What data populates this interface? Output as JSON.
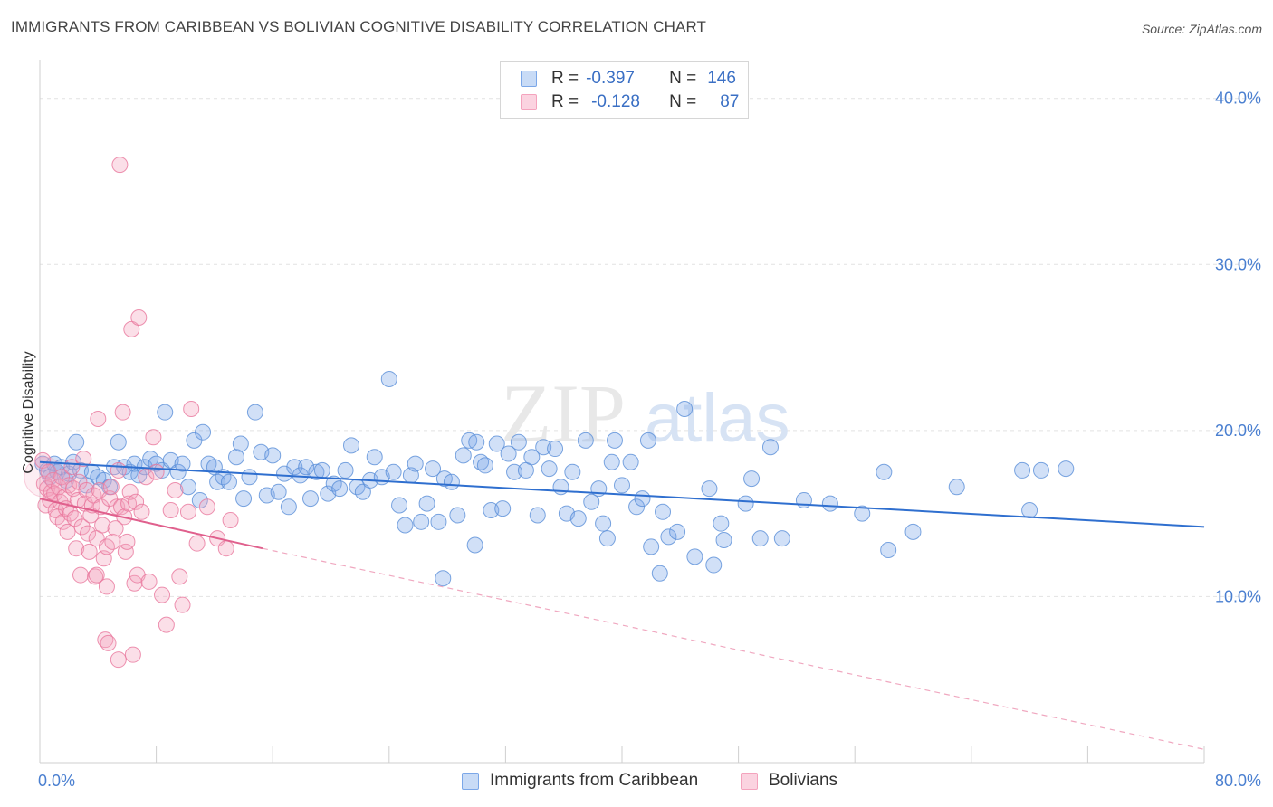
{
  "title": "IMMIGRANTS FROM CARIBBEAN VS BOLIVIAN COGNITIVE DISABILITY CORRELATION CHART",
  "source": "Source: ZipAtlas.com",
  "watermark": {
    "zip": "ZIP",
    "atlas": "atlas"
  },
  "legend_top": {
    "rows": [
      {
        "r_label": "R =",
        "r_value": "-0.397",
        "n_label": "N =",
        "n_value": "146",
        "color": "#7ba7e8"
      },
      {
        "r_label": "R =",
        "r_value": "-0.128",
        "n_label": "N =",
        "n_value": "87",
        "color": "#f4a3bd"
      }
    ]
  },
  "chart_data": {
    "type": "scatter",
    "title": "IMMIGRANTS FROM CARIBBEAN VS BOLIVIAN COGNITIVE DISABILITY CORRELATION CHART",
    "xlabel": "",
    "ylabel": "Cognitive Disability",
    "xlim": [
      0,
      80
    ],
    "ylim": [
      0,
      42
    ],
    "x_tick_labels": [
      "0.0%",
      "80.0%"
    ],
    "y_ticks": [
      10,
      20,
      30,
      40
    ],
    "y_tick_labels": [
      "10.0%",
      "20.0%",
      "30.0%",
      "40.0%"
    ],
    "grid": true,
    "legend_position": "bottom",
    "series": [
      {
        "name": "Immigrants from Caribbean",
        "color": "#7ba7e8",
        "stroke": "#5a8fd8",
        "trend": {
          "x": [
            0,
            80
          ],
          "y": [
            18.1,
            14.2
          ],
          "color": "#2f6fcf"
        },
        "points": [
          [
            0.2,
            18.0
          ],
          [
            0.5,
            17.6
          ],
          [
            0.7,
            17.2
          ],
          [
            1.0,
            18.0
          ],
          [
            1.2,
            17.5
          ],
          [
            1.5,
            17.8
          ],
          [
            1.8,
            17.0
          ],
          [
            2.0,
            17.4
          ],
          [
            2.3,
            18.1
          ],
          [
            2.5,
            19.3
          ],
          [
            2.8,
            17.6
          ],
          [
            3.2,
            16.7
          ],
          [
            3.6,
            17.5
          ],
          [
            4.0,
            17.2
          ],
          [
            4.4,
            17.0
          ],
          [
            4.8,
            16.6
          ],
          [
            5.1,
            17.8
          ],
          [
            5.4,
            19.3
          ],
          [
            5.8,
            17.8
          ],
          [
            6.2,
            17.5
          ],
          [
            6.5,
            18.0
          ],
          [
            6.8,
            17.3
          ],
          [
            7.2,
            17.8
          ],
          [
            7.6,
            18.3
          ],
          [
            8.0,
            18.0
          ],
          [
            8.4,
            17.6
          ],
          [
            8.6,
            21.1
          ],
          [
            9.0,
            18.2
          ],
          [
            9.5,
            17.5
          ],
          [
            9.8,
            18.0
          ],
          [
            10.2,
            16.6
          ],
          [
            10.6,
            19.4
          ],
          [
            11.0,
            15.8
          ],
          [
            11.2,
            19.9
          ],
          [
            11.6,
            18.0
          ],
          [
            12.0,
            17.8
          ],
          [
            12.2,
            16.9
          ],
          [
            12.6,
            17.2
          ],
          [
            13.0,
            16.9
          ],
          [
            13.5,
            18.4
          ],
          [
            13.8,
            19.2
          ],
          [
            14.0,
            15.9
          ],
          [
            14.4,
            17.2
          ],
          [
            14.8,
            21.1
          ],
          [
            15.2,
            18.7
          ],
          [
            15.6,
            16.1
          ],
          [
            16.0,
            18.5
          ],
          [
            16.4,
            16.3
          ],
          [
            16.8,
            17.4
          ],
          [
            17.1,
            15.4
          ],
          [
            17.5,
            17.8
          ],
          [
            17.9,
            17.3
          ],
          [
            18.3,
            17.8
          ],
          [
            18.6,
            15.9
          ],
          [
            19.0,
            17.5
          ],
          [
            19.4,
            17.6
          ],
          [
            19.8,
            16.2
          ],
          [
            20.2,
            16.8
          ],
          [
            20.6,
            16.5
          ],
          [
            21.0,
            17.6
          ],
          [
            21.4,
            19.1
          ],
          [
            21.8,
            16.6
          ],
          [
            22.2,
            16.3
          ],
          [
            22.7,
            17.0
          ],
          [
            23.0,
            18.4
          ],
          [
            23.5,
            17.2
          ],
          [
            24.0,
            23.1
          ],
          [
            24.3,
            17.5
          ],
          [
            24.7,
            15.5
          ],
          [
            25.1,
            14.3
          ],
          [
            25.5,
            17.3
          ],
          [
            25.8,
            18.0
          ],
          [
            26.2,
            14.5
          ],
          [
            26.6,
            15.6
          ],
          [
            27.0,
            17.7
          ],
          [
            27.4,
            14.5
          ],
          [
            27.8,
            17.1
          ],
          [
            28.3,
            16.9
          ],
          [
            28.7,
            14.9
          ],
          [
            29.1,
            18.5
          ],
          [
            29.5,
            19.4
          ],
          [
            29.9,
            13.1
          ],
          [
            30.3,
            18.1
          ],
          [
            30.6,
            17.9
          ],
          [
            31.0,
            15.2
          ],
          [
            31.4,
            19.2
          ],
          [
            31.8,
            15.3
          ],
          [
            32.2,
            18.6
          ],
          [
            32.6,
            17.5
          ],
          [
            32.9,
            19.3
          ],
          [
            33.4,
            17.6
          ],
          [
            33.8,
            18.4
          ],
          [
            34.2,
            14.9
          ],
          [
            34.6,
            19.0
          ],
          [
            35.0,
            17.7
          ],
          [
            35.4,
            18.9
          ],
          [
            35.8,
            16.6
          ],
          [
            36.2,
            15.0
          ],
          [
            36.6,
            17.5
          ],
          [
            37.0,
            14.7
          ],
          [
            37.5,
            19.4
          ],
          [
            37.9,
            15.7
          ],
          [
            38.4,
            16.5
          ],
          [
            38.7,
            14.4
          ],
          [
            39.0,
            13.5
          ],
          [
            39.3,
            18.1
          ],
          [
            39.5,
            19.4
          ],
          [
            40.0,
            16.7
          ],
          [
            40.6,
            18.1
          ],
          [
            41.0,
            15.4
          ],
          [
            41.4,
            15.9
          ],
          [
            41.8,
            19.4
          ],
          [
            42.0,
            13.0
          ],
          [
            42.6,
            11.4
          ],
          [
            42.8,
            15.1
          ],
          [
            43.2,
            13.6
          ],
          [
            43.8,
            13.9
          ],
          [
            44.3,
            21.3
          ],
          [
            45.0,
            12.4
          ],
          [
            46.0,
            16.5
          ],
          [
            46.3,
            11.9
          ],
          [
            46.8,
            14.4
          ],
          [
            47.0,
            13.4
          ],
          [
            48.5,
            15.6
          ],
          [
            48.9,
            17.1
          ],
          [
            49.5,
            13.5
          ],
          [
            50.2,
            19.0
          ],
          [
            51.0,
            13.5
          ],
          [
            52.5,
            15.8
          ],
          [
            54.3,
            15.6
          ],
          [
            56.5,
            15.0
          ],
          [
            58.0,
            17.5
          ],
          [
            58.3,
            12.8
          ],
          [
            60.0,
            13.9
          ],
          [
            63.0,
            16.6
          ],
          [
            67.5,
            17.6
          ],
          [
            68.0,
            15.2
          ],
          [
            68.8,
            17.6
          ],
          [
            70.5,
            17.7
          ],
          [
            27.7,
            11.1
          ],
          [
            30.0,
            19.3
          ]
        ]
      },
      {
        "name": "Bolivians",
        "color": "#f4a3bd",
        "stroke": "#e8779c",
        "trend": {
          "x": [
            0,
            15.3
          ],
          "y": [
            15.9,
            12.9
          ],
          "color": "#e0608d",
          "dashed_to": [
            80,
            0.8
          ]
        },
        "points": [
          [
            0.2,
            18.2
          ],
          [
            0.3,
            16.8
          ],
          [
            0.4,
            15.5
          ],
          [
            0.5,
            16.5
          ],
          [
            0.6,
            17.5
          ],
          [
            0.7,
            15.8
          ],
          [
            0.8,
            16.3
          ],
          [
            0.9,
            17.0
          ],
          [
            1.0,
            16.2
          ],
          [
            1.1,
            15.2
          ],
          [
            1.2,
            14.8
          ],
          [
            1.3,
            16.6
          ],
          [
            1.4,
            15.7
          ],
          [
            1.5,
            17.2
          ],
          [
            1.6,
            14.5
          ],
          [
            1.7,
            16.0
          ],
          [
            1.8,
            15.3
          ],
          [
            1.9,
            13.9
          ],
          [
            2.0,
            16.7
          ],
          [
            2.1,
            15.0
          ],
          [
            2.2,
            17.8
          ],
          [
            2.3,
            16.5
          ],
          [
            2.4,
            14.7
          ],
          [
            2.5,
            12.9
          ],
          [
            2.6,
            15.8
          ],
          [
            2.7,
            16.9
          ],
          [
            2.8,
            11.3
          ],
          [
            2.9,
            14.2
          ],
          [
            3.0,
            18.3
          ],
          [
            3.1,
            15.6
          ],
          [
            3.2,
            16.4
          ],
          [
            3.3,
            13.8
          ],
          [
            3.4,
            12.7
          ],
          [
            3.5,
            14.9
          ],
          [
            3.6,
            15.5
          ],
          [
            3.7,
            16.1
          ],
          [
            3.8,
            11.2
          ],
          [
            3.9,
            13.5
          ],
          [
            4.0,
            20.7
          ],
          [
            4.1,
            16.4
          ],
          [
            4.2,
            15.4
          ],
          [
            4.3,
            14.3
          ],
          [
            4.4,
            12.3
          ],
          [
            4.5,
            7.4
          ],
          [
            4.6,
            13.0
          ],
          [
            4.7,
            7.2
          ],
          [
            4.8,
            15.9
          ],
          [
            4.9,
            16.6
          ],
          [
            5.0,
            13.3
          ],
          [
            5.2,
            14.1
          ],
          [
            5.3,
            15.4
          ],
          [
            5.4,
            17.6
          ],
          [
            5.5,
            36.0
          ],
          [
            5.6,
            15.4
          ],
          [
            5.7,
            21.1
          ],
          [
            5.8,
            14.8
          ],
          [
            5.9,
            12.7
          ],
          [
            6.0,
            13.3
          ],
          [
            6.1,
            15.6
          ],
          [
            6.2,
            16.3
          ],
          [
            6.3,
            26.1
          ],
          [
            6.5,
            10.8
          ],
          [
            6.6,
            15.7
          ],
          [
            6.7,
            11.3
          ],
          [
            6.8,
            26.8
          ],
          [
            7.0,
            15.1
          ],
          [
            7.3,
            17.2
          ],
          [
            7.5,
            10.9
          ],
          [
            7.8,
            19.6
          ],
          [
            8.0,
            17.5
          ],
          [
            8.4,
            10.1
          ],
          [
            8.7,
            8.3
          ],
          [
            9.0,
            15.2
          ],
          [
            9.3,
            16.4
          ],
          [
            9.6,
            11.2
          ],
          [
            9.8,
            9.5
          ],
          [
            10.2,
            15.1
          ],
          [
            10.4,
            21.3
          ],
          [
            10.8,
            13.2
          ],
          [
            11.5,
            15.4
          ],
          [
            12.2,
            13.5
          ],
          [
            12.8,
            12.9
          ],
          [
            13.1,
            14.6
          ],
          [
            6.4,
            6.5
          ],
          [
            5.4,
            6.2
          ],
          [
            3.9,
            11.3
          ],
          [
            4.6,
            10.6
          ]
        ]
      }
    ]
  },
  "bottom_legend": [
    {
      "label": "Immigrants from Caribbean",
      "color": "#7ba7e8"
    },
    {
      "label": "Bolivians",
      "color": "#f4a3bd"
    }
  ]
}
